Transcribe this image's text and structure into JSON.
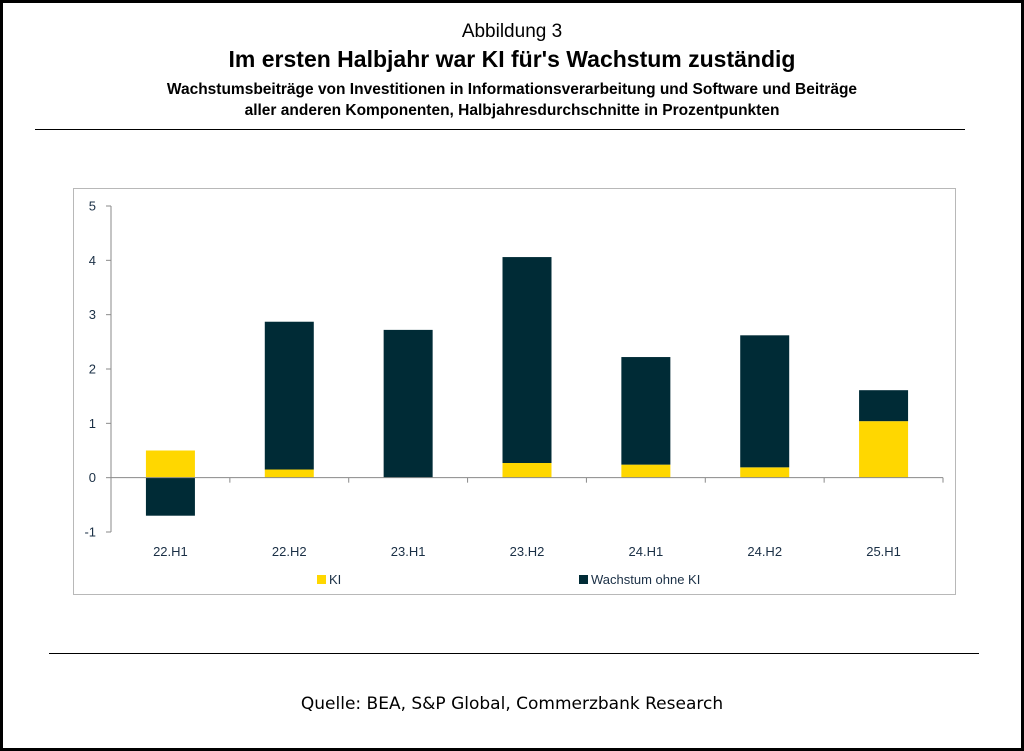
{
  "header": {
    "figure_label": "Abbildung 3",
    "title": "Im ersten Halbjahr war KI für's Wachstum zuständig",
    "subtitle_line1": "Wachstumsbeiträge von Investitionen in Informationsverarbeitung und Software und Beiträge",
    "subtitle_line2": "aller anderen Komponenten, Halbjahresdurchschnitte in Prozentpunkten"
  },
  "footer": {
    "source": "Quelle: BEA, S&P Global, Commerzbank Research"
  },
  "chart_data": {
    "type": "bar",
    "stacked": true,
    "categories": [
      "22.H1",
      "22.H2",
      "23.H1",
      "23.H2",
      "24.H1",
      "24.H2",
      "25.H1"
    ],
    "series": [
      {
        "name": "KI",
        "color": "#ffd700",
        "values": [
          0.5,
          0.15,
          0.0,
          0.27,
          0.24,
          0.19,
          1.04
        ]
      },
      {
        "name": "Wachstum ohne KI",
        "color": "#002b36",
        "values": [
          -0.7,
          2.72,
          2.72,
          3.79,
          1.98,
          2.43,
          0.57
        ]
      }
    ],
    "ylim": [
      -1,
      5
    ],
    "yticks": [
      "-1",
      "0",
      "1",
      "2",
      "3",
      "4",
      "5"
    ],
    "grid": false,
    "legend_position": "bottom"
  }
}
